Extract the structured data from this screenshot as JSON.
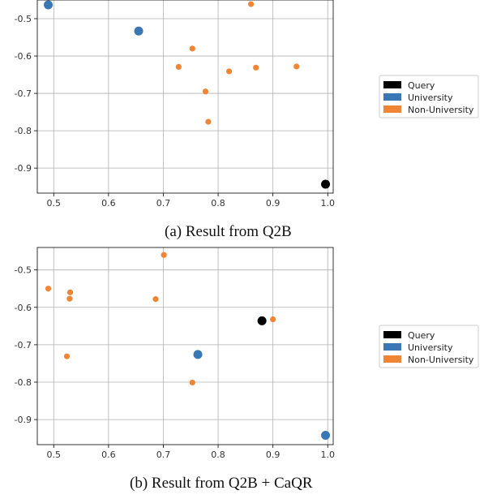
{
  "chart_data": [
    {
      "type": "scatter",
      "caption": "(a) Result from Q2B",
      "xlim": [
        0.47,
        1.01
      ],
      "ylim": [
        -0.967,
        -0.45
      ],
      "xticks": [
        0.5,
        0.6,
        0.7,
        0.8,
        0.9,
        1.0
      ],
      "xtick_labels": [
        "0.5",
        "0.6",
        "0.7",
        "0.8",
        "0.9",
        "1.0"
      ],
      "yticks": [
        -0.5,
        -0.6,
        -0.7,
        -0.8,
        -0.9
      ],
      "ytick_labels": [
        "-0.5",
        "-0.6",
        "-0.7",
        "-0.8",
        "-0.9"
      ],
      "grid": true,
      "legend_position": "right",
      "series": [
        {
          "name": "Query",
          "color": "#000000",
          "marker": "large",
          "points": [
            [
              0.996,
              -0.943
            ]
          ]
        },
        {
          "name": "University",
          "color": "#3a78b5",
          "marker": "large",
          "points": [
            [
              0.49,
              -0.463
            ],
            [
              0.655,
              -0.533
            ]
          ]
        },
        {
          "name": "Non-University",
          "color": "#ee8635",
          "marker": "small",
          "points": [
            [
              0.86,
              -0.461
            ],
            [
              0.753,
              -0.58
            ],
            [
              0.728,
              -0.629
            ],
            [
              0.82,
              -0.641
            ],
            [
              0.869,
              -0.631
            ],
            [
              0.943,
              -0.628
            ],
            [
              0.777,
              -0.695
            ],
            [
              0.782,
              -0.776
            ]
          ]
        }
      ]
    },
    {
      "type": "scatter",
      "caption": "(b) Result from Q2B + CaQR",
      "xlim": [
        0.47,
        1.01
      ],
      "ylim": [
        -0.967,
        -0.44
      ],
      "xticks": [
        0.5,
        0.6,
        0.7,
        0.8,
        0.9,
        1.0
      ],
      "xtick_labels": [
        "0.5",
        "0.6",
        "0.7",
        "0.8",
        "0.9",
        "1.0"
      ],
      "yticks": [
        -0.5,
        -0.6,
        -0.7,
        -0.8,
        -0.9
      ],
      "ytick_labels": [
        "-0.5",
        "-0.6",
        "-0.7",
        "-0.8",
        "-0.9"
      ],
      "grid": true,
      "legend_position": "right",
      "series": [
        {
          "name": "Query",
          "color": "#000000",
          "marker": "large",
          "points": [
            [
              0.88,
              -0.636
            ]
          ]
        },
        {
          "name": "University",
          "color": "#3a78b5",
          "marker": "large",
          "points": [
            [
              0.763,
              -0.726
            ],
            [
              0.996,
              -0.942
            ]
          ]
        },
        {
          "name": "Non-University",
          "color": "#ee8635",
          "marker": "small",
          "points": [
            [
              0.49,
              -0.55
            ],
            [
              0.53,
              -0.56
            ],
            [
              0.529,
              -0.577
            ],
            [
              0.701,
              -0.46
            ],
            [
              0.686,
              -0.578
            ],
            [
              0.524,
              -0.731
            ],
            [
              0.753,
              -0.801
            ],
            [
              0.9,
              -0.632
            ]
          ]
        }
      ]
    }
  ]
}
